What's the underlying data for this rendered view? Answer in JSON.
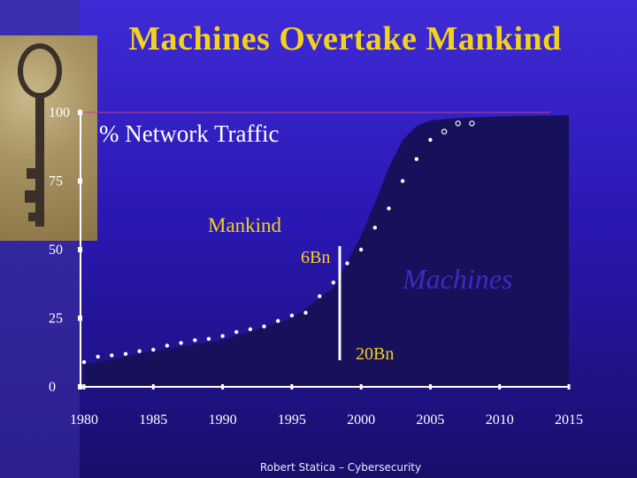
{
  "slide": {
    "title": "Machines Overtake Mankind",
    "footer": "Robert Statica – Cybersecurity"
  },
  "chart_data": {
    "type": "area",
    "title": "% Network Traffic",
    "xlabel": "",
    "ylabel": "",
    "xlim": [
      1980,
      2015
    ],
    "ylim": [
      0,
      100
    ],
    "x_ticks": [
      1980,
      1985,
      1990,
      1995,
      2000,
      2005,
      2010,
      2015
    ],
    "y_ticks": [
      0,
      25,
      50,
      75,
      100
    ],
    "grid": false,
    "series": [
      {
        "name": "Machines",
        "x": [
          1980,
          1985,
          1990,
          1995,
          1998,
          2000,
          2001,
          2002,
          2003,
          2004,
          2005,
          2007,
          2010,
          2015
        ],
        "y": [
          8,
          13,
          17,
          25,
          36,
          55,
          67,
          80,
          90,
          95,
          97,
          98,
          98.5,
          99
        ]
      },
      {
        "name": "Mankind",
        "markers": "dots",
        "x": [
          1980,
          1981,
          1982,
          1983,
          1984,
          1985,
          1986,
          1987,
          1988,
          1989,
          1990,
          1991,
          1992,
          1993,
          1994,
          1995,
          1996,
          1997,
          1998,
          1999,
          2000,
          2001,
          2002,
          2003,
          2004,
          2005,
          2006,
          2007,
          2008
        ],
        "y": [
          9,
          11,
          11.5,
          12,
          13,
          13.5,
          15,
          16,
          17,
          17.5,
          18.5,
          20,
          21,
          22,
          24,
          26,
          27,
          33,
          38,
          45,
          50,
          58,
          65,
          75,
          83,
          90,
          93,
          96,
          96
        ]
      }
    ],
    "annotations": {
      "mankind_label": "Mankind",
      "six_bn_label": "6Bn",
      "machines_label": "Machines",
      "twenty_bn_label": "20Bn"
    },
    "colors": {
      "machines_area": "#16115a",
      "dots": "#ffffff",
      "axis": "#ffffff",
      "top_line": "#c43c9a",
      "machines_text": "#3c2bc0",
      "annotation_text": "#f2d21a"
    }
  }
}
